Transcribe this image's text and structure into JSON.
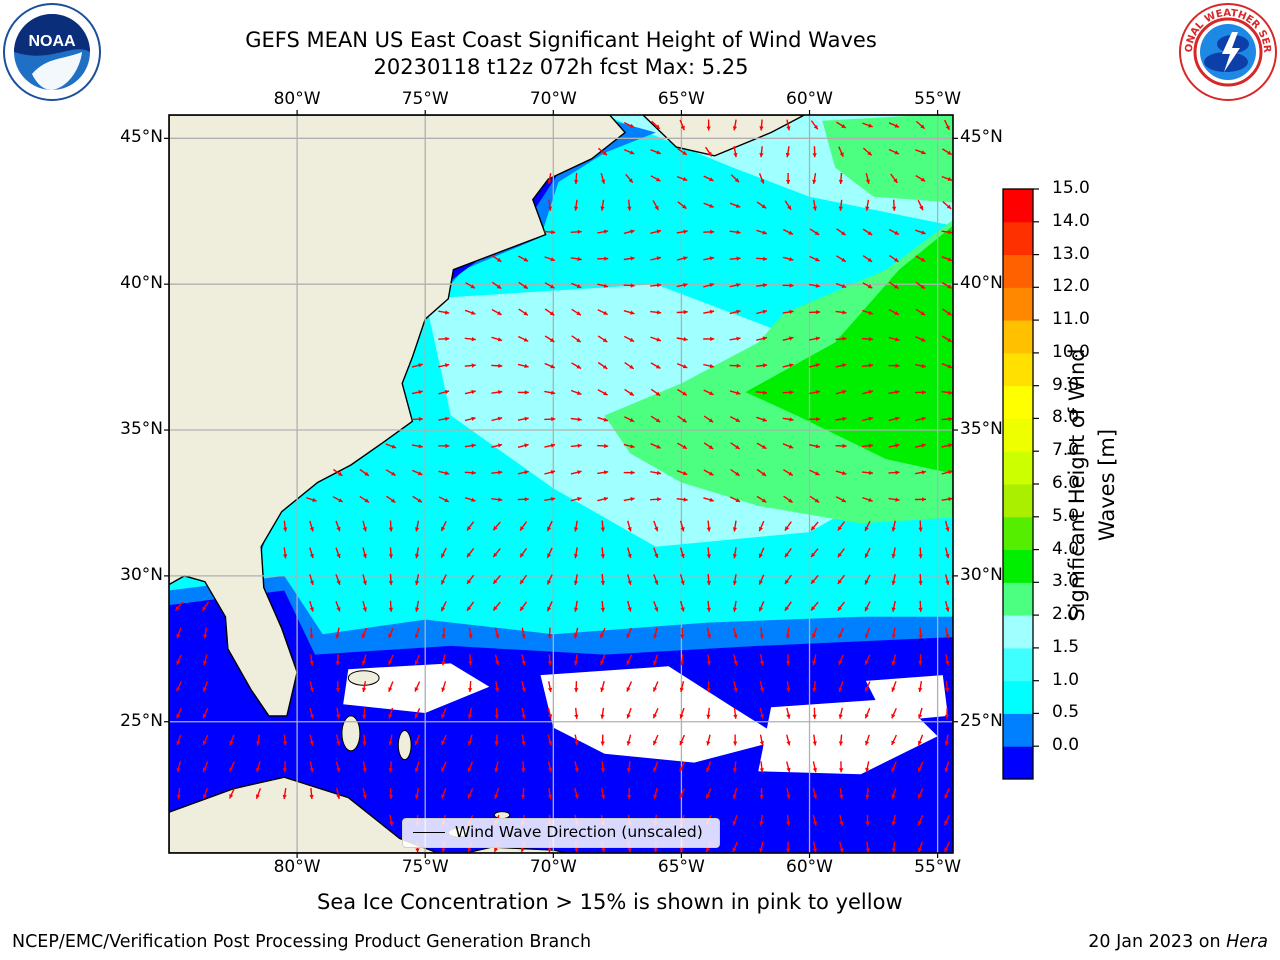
{
  "title_line1": "GEFS MEAN US East Coast Significant Height of Wind Waves",
  "title_line2": "20230118 t12z 072h fcst    Max: 5.25",
  "lon_labels": [
    "80°W",
    "75°W",
    "70°W",
    "65°W",
    "60°W",
    "55°W"
  ],
  "lat_labels": [
    "45°N",
    "40°N",
    "35°N",
    "30°N",
    "25°N"
  ],
  "map_extent": {
    "lon_min": -85,
    "lon_max": -54.4,
    "lat_min": 20.5,
    "lat_max": 45.8
  },
  "legend_label": "Wind Wave Direction (unscaled)",
  "colorbar": {
    "label": "Significant Height of Wind Waves [m]",
    "label_line1": "Significant Height of Wind",
    "label_line2": "Waves [m]",
    "ticks": [
      "15.0",
      "14.0",
      "13.0",
      "12.0",
      "11.0",
      "10.0",
      "9.0",
      "8.0",
      "7.0",
      "6.0",
      "5.0",
      "4.0",
      "3.0",
      "2.0",
      "1.5",
      "1.0",
      "0.5",
      "0.0"
    ],
    "colors": [
      "#0000ff",
      "#0080ff",
      "#00ffff",
      "#40ffff",
      "#a0ffff",
      "#4dff80",
      "#00ee00",
      "#55ee00",
      "#aaee00",
      "#ccff00",
      "#eeff00",
      "#ffff00",
      "#ffe000",
      "#ffc000",
      "#ff8800",
      "#ff6000",
      "#ff3000",
      "#ff0000"
    ]
  },
  "colors": {
    "land": "#efeedc",
    "arrow": "#ff0000",
    "grid": "#b0b0b0",
    "coast": "#000000"
  },
  "caption": "Sea Ice Concentration > 15% is shown in pink to yellow",
  "footer_left": "NCEP/EMC/Verification Post Processing Product Generation Branch",
  "footer_date": "20 Jan 2023 on ",
  "footer_machine": "Hera",
  "logos": {
    "left": "NOAA",
    "right": "NATIONAL WEATHER SERVICE"
  }
}
